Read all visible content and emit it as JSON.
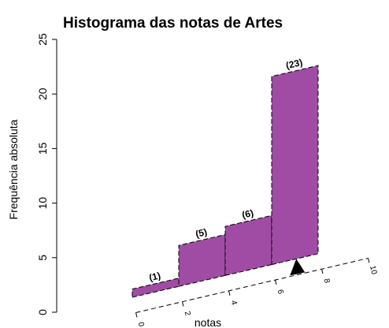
{
  "chart_data": {
    "type": "bar",
    "title": "Histograma das notas de Artes",
    "xlabel": "notas",
    "ylabel": "Frequência absoluta",
    "categories": [
      "0-2",
      "2-4",
      "4-6",
      "6-8"
    ],
    "values": [
      1,
      5,
      6,
      23
    ],
    "bar_labels": [
      "(1)",
      "(5)",
      "(6)",
      "(23)"
    ],
    "bin_edges": [
      0,
      2,
      4,
      6,
      8
    ],
    "xlim": [
      0,
      10
    ],
    "ylim": [
      0,
      25
    ],
    "xticks": [
      "0",
      "2",
      "4",
      "6",
      "8",
      "10"
    ],
    "yticks": [
      "0",
      "5",
      "10",
      "15",
      "20",
      "25"
    ],
    "bar_color": "#a04ca4",
    "mean_marker": 7,
    "grid": false,
    "legend": "none"
  }
}
